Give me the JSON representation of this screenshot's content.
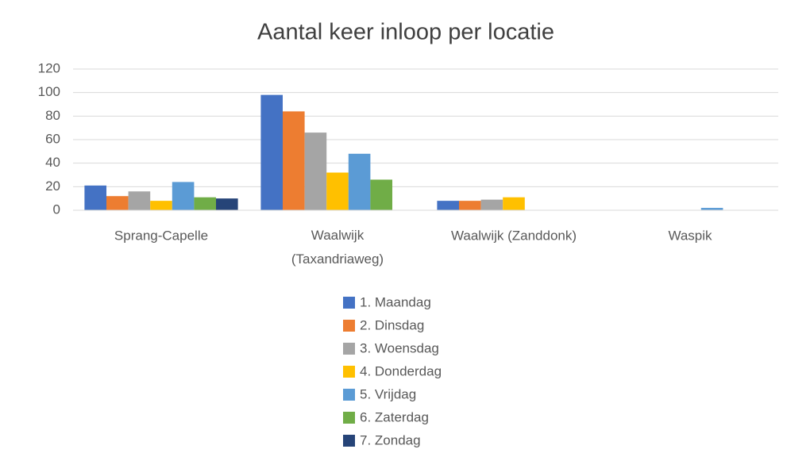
{
  "chart_data": {
    "type": "bar",
    "title": "Aantal keer inloop per locatie",
    "categories": [
      "Sprang-Capelle",
      "Waalwijk (Taxandriaweg)",
      "Waalwijk (Zanddonk)",
      "Waspik"
    ],
    "series": [
      {
        "name": "1. Maandag",
        "color": "#4472c4",
        "values": [
          21,
          98,
          8,
          0
        ]
      },
      {
        "name": "2. Dinsdag",
        "color": "#ed7d31",
        "values": [
          12,
          84,
          8,
          0
        ]
      },
      {
        "name": "3. Woensdag",
        "color": "#a5a5a5",
        "values": [
          16,
          66,
          9,
          0
        ]
      },
      {
        "name": "4. Donderdag",
        "color": "#ffc000",
        "values": [
          8,
          32,
          11,
          0
        ]
      },
      {
        "name": "5. Vrijdag",
        "color": "#5b9bd5",
        "values": [
          24,
          48,
          0,
          2
        ]
      },
      {
        "name": "6. Zaterdag",
        "color": "#70ad47",
        "values": [
          11,
          26,
          0,
          0
        ]
      },
      {
        "name": "7. Zondag",
        "color": "#264478",
        "values": [
          10,
          0,
          0,
          0
        ]
      }
    ],
    "ylim": [
      0,
      120
    ],
    "yticks": [
      0,
      20,
      40,
      60,
      80,
      100,
      120
    ],
    "grid": true,
    "legend": "bottom"
  }
}
